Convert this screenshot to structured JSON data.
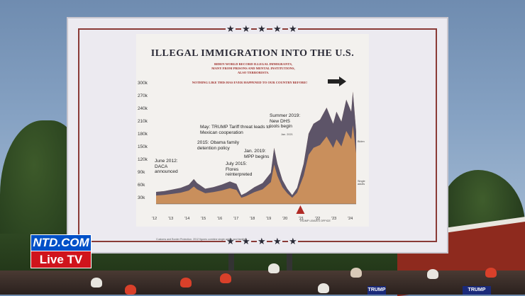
{
  "chart_data": {
    "type": "area",
    "title": "ILLEGAL IMMIGRATION INTO THE U.S.",
    "subtitle_lines": [
      "BIDEN WORLD RECORD ILLEGAL IMMIGRANTS,",
      "MANY FROM PRISONS AND MENTAL INSTITUTIONS,",
      "ALSO TERRORISTS."
    ],
    "tagline": "NOTHING LIKE THIS HAS EVER HAPPENED TO OUR COUNTRY BEFORE!",
    "ylim": [
      0,
      300000
    ],
    "y_tick_labels": [
      "300k",
      "270k",
      "240k",
      "210k",
      "180k",
      "150k",
      "120k",
      "90k",
      "60k",
      "30k"
    ],
    "x_tick_labels": [
      "'12",
      "'13",
      "'14",
      "'15",
      "'16",
      "'17",
      "'18",
      "'19",
      "'20",
      "'21",
      "'22",
      "'23",
      "'24"
    ],
    "x": [
      2012.0,
      2012.5,
      2013.0,
      2013.5,
      2014.0,
      2014.3,
      2014.5,
      2015.0,
      2015.5,
      2016.0,
      2016.5,
      2016.9,
      2017.2,
      2017.5,
      2018.0,
      2018.5,
      2019.0,
      2019.2,
      2019.4,
      2019.7,
      2020.0,
      2020.3,
      2020.6,
      2021.0,
      2021.3,
      2021.6,
      2022.0,
      2022.4,
      2022.8,
      2023.0,
      2023.3,
      2023.6,
      2023.9,
      2024.0,
      2024.2
    ],
    "series": [
      {
        "values": [
          30000,
          32000,
          36000,
          40000,
          48000,
          62000,
          52000,
          38000,
          42000,
          48000,
          56000,
          50000,
          22000,
          28000,
          42000,
          52000,
          78000,
          140000,
          100000,
          60000,
          38000,
          22000,
          40000,
          100000,
          175000,
          200000,
          210000,
          240000,
          200000,
          230000,
          205000,
          260000,
          230000,
          280000,
          180000
        ]
      }
    ],
    "annotations": [
      "June 2012: DACA announced",
      "2015: Obama family detention policy",
      "July 2015: Flores reinterpreted",
      "May: TRUMP Tariff threat leads to Mexican cooperation",
      "Jan. 2019: MPP begins",
      "Summer 2019: New DHS tools begin",
      "Jan. 2021",
      "TRUMP LEAVES OFFICE",
      "Biden",
      "Single adults"
    ],
    "footer_note": "Customs and Border Protection. 2012 figures combine single adults and families.",
    "colors": {
      "area_fill": "#c98f5c",
      "family_fill": "#4a4a6a",
      "accent_red": "#b02a25"
    }
  },
  "overlay": {
    "logo_top": "NTD.COM",
    "logo_bottom": "Live TV",
    "sign_text": "TRUMP"
  }
}
